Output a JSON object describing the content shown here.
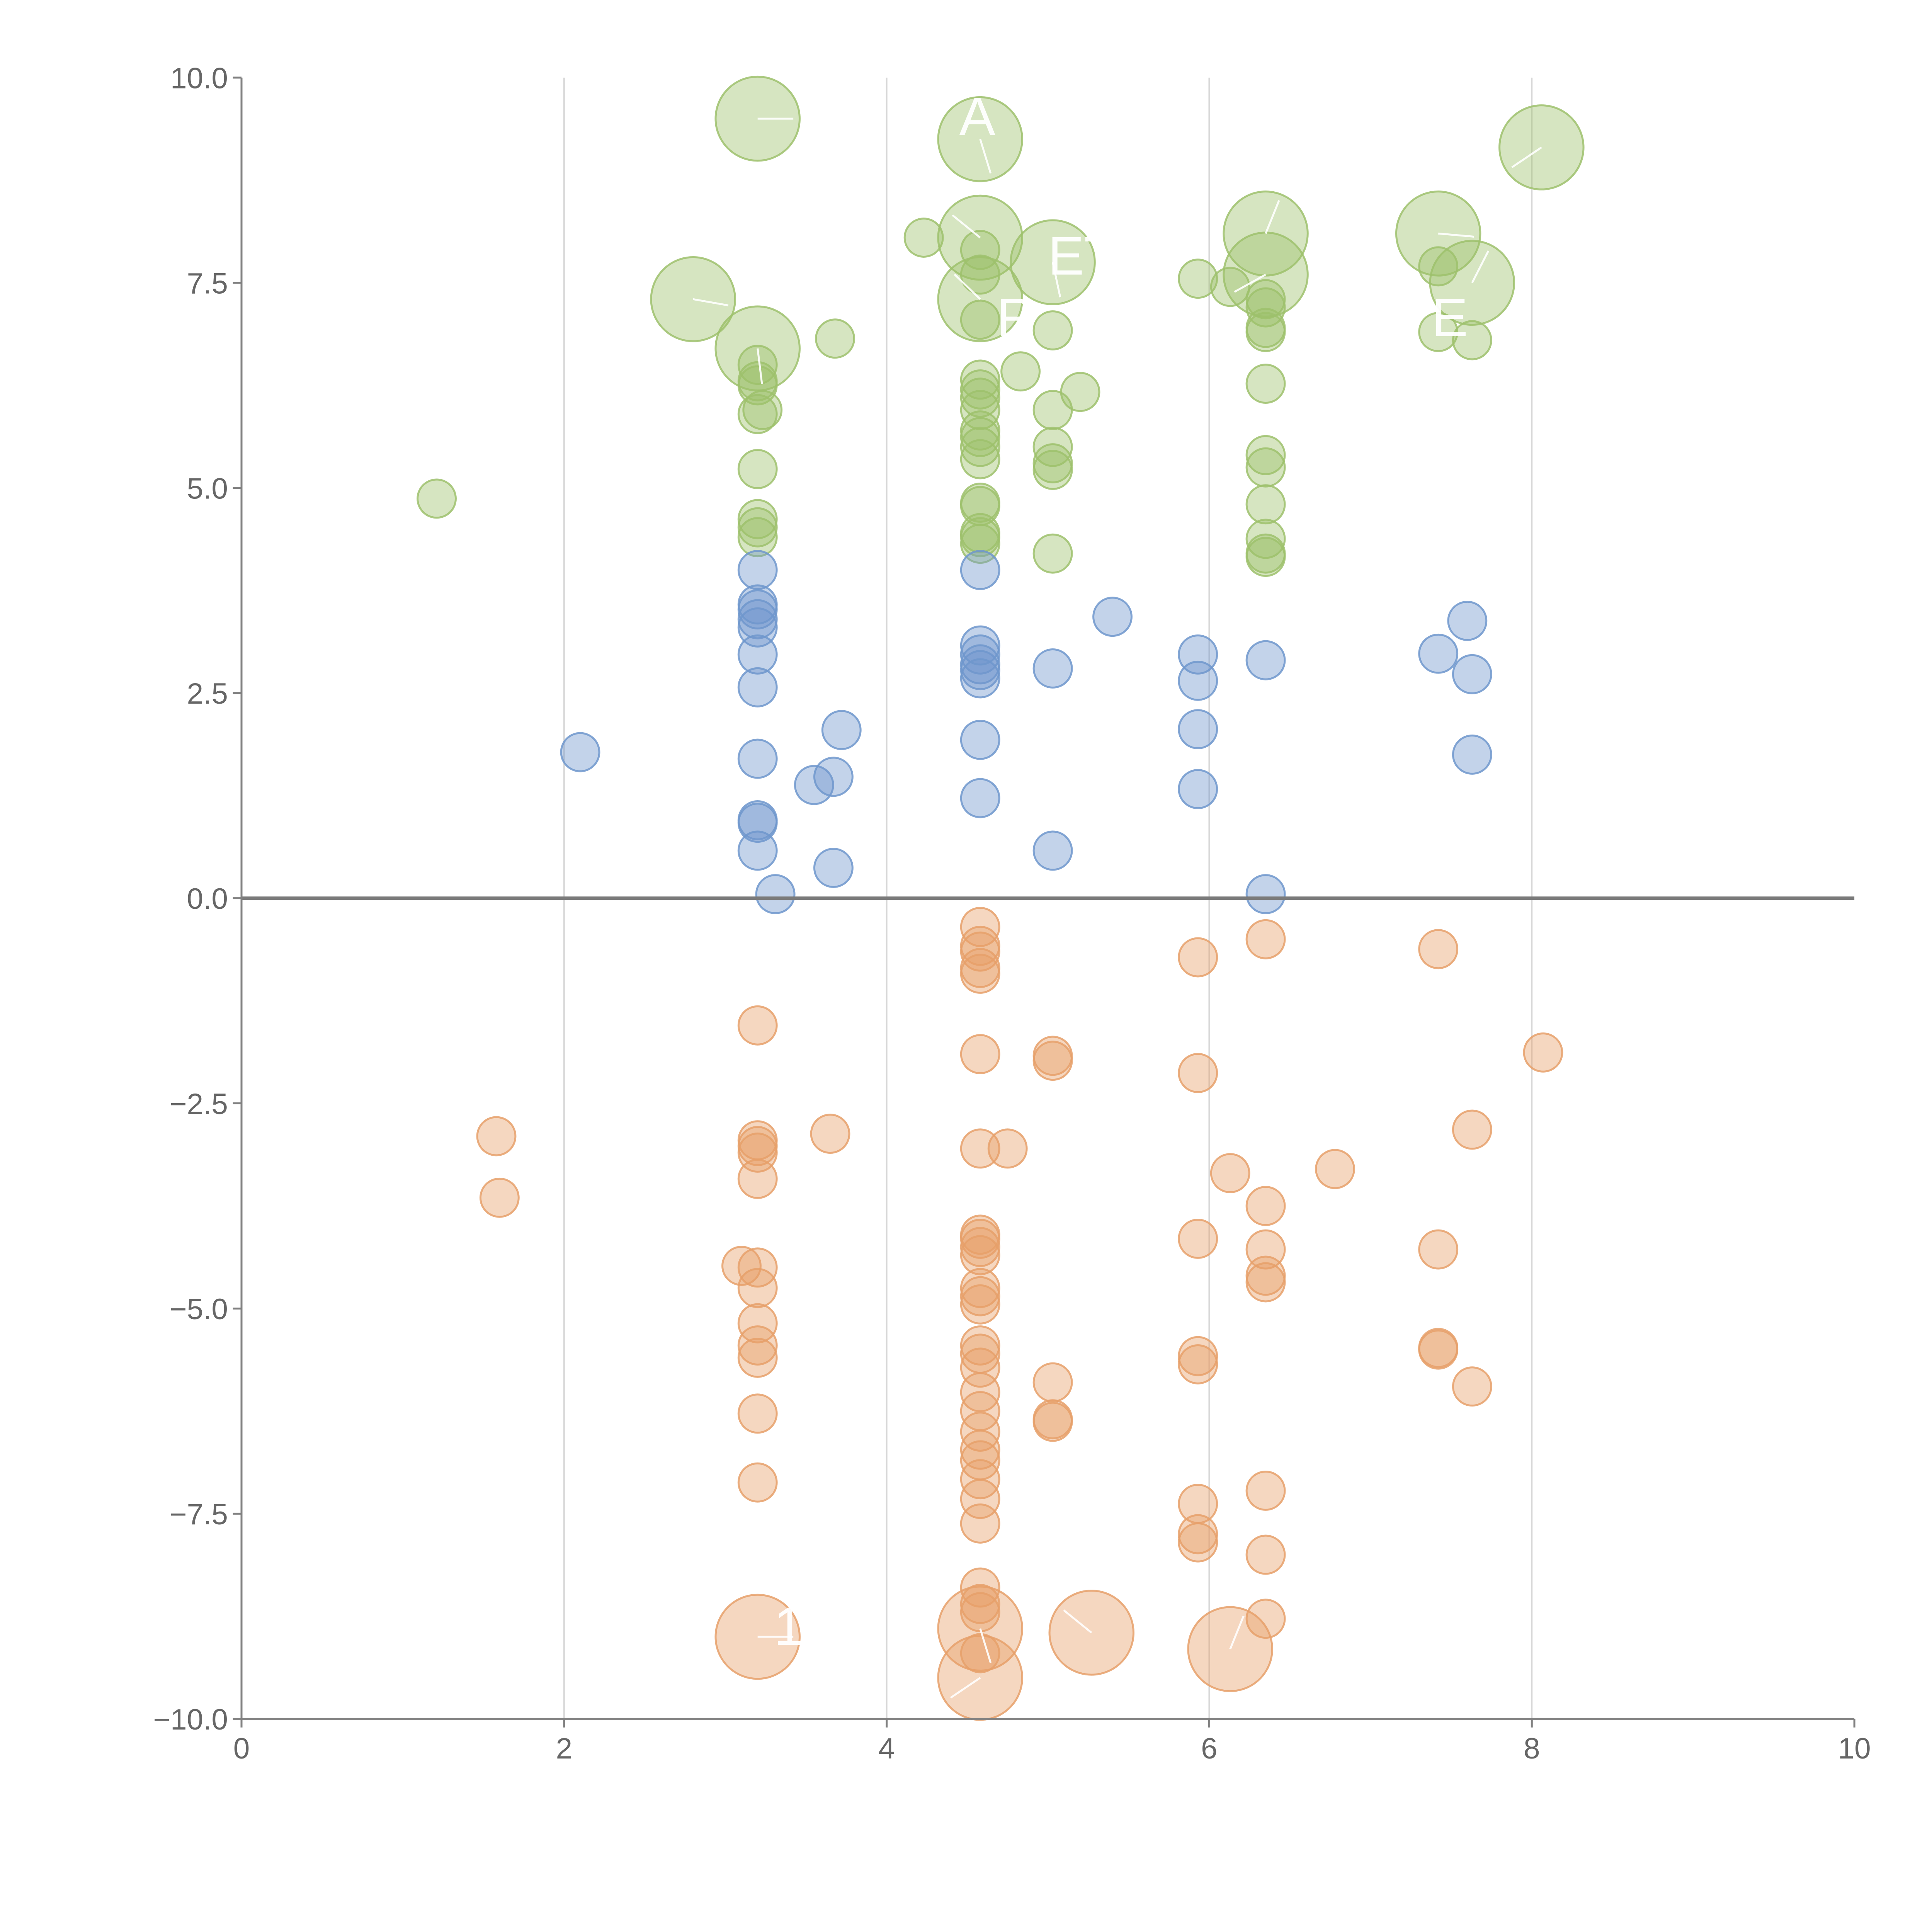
{
  "chart_data": {
    "type": "scatter",
    "title": "",
    "xlabel": "",
    "ylabel": "",
    "xlim": [
      0,
      10
    ],
    "ylim": [
      -10,
      10
    ],
    "x_ticks": [
      0,
      2,
      4,
      6,
      8,
      10
    ],
    "x_tick_labels": [
      "0",
      "2",
      "4",
      "6",
      "8",
      "10"
    ],
    "y_ticks": [
      10,
      7.5,
      5,
      2.5,
      0,
      -2.5,
      -5,
      -7.5,
      -10
    ],
    "y_tick_labels": [
      "10.0",
      "7.5",
      "5.0",
      "2.5",
      "0.0",
      "−2.5",
      "−5.0",
      "−7.5",
      "−10.0"
    ],
    "vertical_gridlines_at": [
      2,
      4,
      6,
      8
    ],
    "zero_line": true,
    "colors": {
      "green": "#9dc16c",
      "blue": "#6f97cd",
      "orange": "#e6a06a",
      "axis": "#808080",
      "grid": "#d8d8d8",
      "zero_line": "#7a7a7a",
      "label_text": "#ffffff"
    },
    "series": [
      {
        "name": "green",
        "color": "#9dc16c",
        "points": [
          [
            3.2,
            9.5,
            2.2
          ],
          [
            4.58,
            9.25,
            2.2
          ],
          [
            8.06,
            9.15,
            2.2
          ],
          [
            4.58,
            8.05,
            2.2
          ],
          [
            6.35,
            8.1,
            2.2
          ],
          [
            7.42,
            8.1,
            2.2
          ],
          [
            5.03,
            7.75,
            2.2
          ],
          [
            6.35,
            7.6,
            2.2
          ],
          [
            4.58,
            7.3,
            2.2
          ],
          [
            7.63,
            7.5,
            2.2
          ],
          [
            2.8,
            7.3,
            2.2
          ],
          [
            3.2,
            6.7,
            2.2
          ],
          [
            4.23,
            8.05,
            1
          ],
          [
            4.58,
            7.9,
            1
          ],
          [
            4.58,
            7.6,
            1
          ],
          [
            4.58,
            7.05,
            1
          ],
          [
            5.93,
            7.55,
            1
          ],
          [
            6.13,
            7.45,
            1
          ],
          [
            6.35,
            7.3,
            1
          ],
          [
            6.35,
            7.2,
            1
          ],
          [
            6.35,
            6.95,
            1
          ],
          [
            6.35,
            6.9,
            1
          ],
          [
            7.42,
            7.7,
            1
          ],
          [
            7.42,
            6.9,
            1
          ],
          [
            7.63,
            6.8,
            1
          ],
          [
            5.03,
            6.92,
            1
          ],
          [
            3.68,
            6.82,
            1
          ],
          [
            4.83,
            6.42,
            1
          ],
          [
            5.2,
            6.17,
            1
          ],
          [
            3.2,
            6.5,
            1
          ],
          [
            3.2,
            6.3,
            1
          ],
          [
            3.2,
            6.25,
            1
          ],
          [
            3.23,
            5.95,
            1
          ],
          [
            3.2,
            5.9,
            1
          ],
          [
            4.58,
            6.32,
            1
          ],
          [
            4.58,
            6.2,
            1
          ],
          [
            4.58,
            6.1,
            1
          ],
          [
            4.58,
            5.95,
            1
          ],
          [
            4.58,
            5.7,
            1
          ],
          [
            4.58,
            5.62,
            1
          ],
          [
            4.58,
            5.5,
            1
          ],
          [
            4.58,
            5.35,
            1
          ],
          [
            5.03,
            5.95,
            1
          ],
          [
            5.03,
            5.5,
            1
          ],
          [
            5.03,
            5.3,
            1
          ],
          [
            5.03,
            5.22,
            1
          ],
          [
            6.35,
            6.27,
            1
          ],
          [
            6.35,
            5.4,
            1
          ],
          [
            6.35,
            5.25,
            1
          ],
          [
            6.35,
            4.8,
            1
          ],
          [
            6.35,
            4.38,
            1
          ],
          [
            6.35,
            4.2,
            1
          ],
          [
            6.35,
            4.16,
            1
          ],
          [
            3.2,
            5.23,
            1
          ],
          [
            3.2,
            4.62,
            1
          ],
          [
            3.2,
            4.52,
            1
          ],
          [
            3.2,
            4.4,
            1
          ],
          [
            4.58,
            4.82,
            1
          ],
          [
            4.58,
            4.78,
            1
          ],
          [
            4.58,
            4.45,
            1
          ],
          [
            4.58,
            4.4,
            1
          ],
          [
            4.58,
            4.32,
            1
          ],
          [
            5.03,
            4.2,
            1
          ],
          [
            1.21,
            4.87,
            1
          ]
        ]
      },
      {
        "name": "blue",
        "color": "#6f97cd",
        "points": [
          [
            3.2,
            4.0,
            1
          ],
          [
            3.2,
            3.58,
            1
          ],
          [
            3.2,
            3.52,
            1
          ],
          [
            3.2,
            3.4,
            1
          ],
          [
            3.2,
            3.3,
            1
          ],
          [
            3.2,
            2.97,
            1
          ],
          [
            3.2,
            2.57,
            1
          ],
          [
            3.2,
            1.7,
            1
          ],
          [
            3.2,
            0.95,
            1
          ],
          [
            3.2,
            0.92,
            1
          ],
          [
            3.2,
            0.58,
            1
          ],
          [
            3.31,
            0.05,
            1
          ],
          [
            3.72,
            2.05,
            1
          ],
          [
            3.55,
            1.38,
            1
          ],
          [
            3.67,
            1.48,
            1
          ],
          [
            3.67,
            0.37,
            1
          ],
          [
            2.1,
            1.78,
            1
          ],
          [
            4.58,
            4.0,
            1
          ],
          [
            4.58,
            3.08,
            1
          ],
          [
            4.58,
            2.97,
            1
          ],
          [
            4.58,
            2.85,
            1
          ],
          [
            4.58,
            2.78,
            1
          ],
          [
            4.58,
            2.68,
            1
          ],
          [
            4.58,
            1.93,
            1
          ],
          [
            4.58,
            1.22,
            1
          ],
          [
            5.03,
            2.8,
            1
          ],
          [
            5.03,
            0.58,
            1
          ],
          [
            5.4,
            3.43,
            1
          ],
          [
            5.93,
            2.97,
            1
          ],
          [
            5.93,
            2.65,
            1
          ],
          [
            5.93,
            2.06,
            1
          ],
          [
            5.93,
            1.33,
            1
          ],
          [
            6.35,
            2.9,
            1
          ],
          [
            6.35,
            0.05,
            1
          ],
          [
            7.42,
            2.98,
            1
          ],
          [
            7.6,
            3.38,
            1
          ],
          [
            7.63,
            2.73,
            1
          ],
          [
            7.63,
            1.75,
            1
          ]
        ]
      },
      {
        "name": "orange",
        "color": "#e6a06a",
        "points": [
          [
            3.2,
            -9.0,
            2.2
          ],
          [
            4.58,
            -8.9,
            2.2
          ],
          [
            4.58,
            -9.5,
            2.2
          ],
          [
            5.27,
            -8.95,
            2.2
          ],
          [
            6.13,
            -9.15,
            2.2
          ],
          [
            4.58,
            -0.35,
            1
          ],
          [
            4.58,
            -0.58,
            1
          ],
          [
            4.58,
            -0.65,
            1
          ],
          [
            4.58,
            -0.85,
            1
          ],
          [
            4.58,
            -0.92,
            1
          ],
          [
            4.58,
            -1.9,
            1
          ],
          [
            4.58,
            -3.05,
            1
          ],
          [
            4.75,
            -3.05,
            1
          ],
          [
            4.58,
            -4.1,
            1
          ],
          [
            4.58,
            -4.15,
            1
          ],
          [
            4.58,
            -4.25,
            1
          ],
          [
            4.58,
            -4.35,
            1
          ],
          [
            4.58,
            -4.75,
            1
          ],
          [
            4.58,
            -4.85,
            1
          ],
          [
            4.58,
            -4.95,
            1
          ],
          [
            4.58,
            -5.45,
            1
          ],
          [
            4.58,
            -5.55,
            1
          ],
          [
            4.58,
            -5.72,
            1
          ],
          [
            4.58,
            -6.02,
            1
          ],
          [
            4.58,
            -6.25,
            1
          ],
          [
            4.58,
            -6.5,
            1
          ],
          [
            4.58,
            -6.72,
            1
          ],
          [
            4.58,
            -6.85,
            1
          ],
          [
            4.58,
            -7.08,
            1
          ],
          [
            4.58,
            -7.32,
            1
          ],
          [
            4.58,
            -7.62,
            1
          ],
          [
            4.58,
            -8.4,
            1
          ],
          [
            4.58,
            -8.6,
            1
          ],
          [
            4.58,
            -8.7,
            1
          ],
          [
            4.58,
            -9.2,
            1
          ],
          [
            3.2,
            -1.55,
            1
          ],
          [
            3.2,
            -2.95,
            1
          ],
          [
            3.2,
            -3.02,
            1
          ],
          [
            3.2,
            -3.1,
            1
          ],
          [
            3.2,
            -3.42,
            1
          ],
          [
            3.1,
            -4.48,
            1
          ],
          [
            3.2,
            -4.5,
            1
          ],
          [
            3.2,
            -4.75,
            1
          ],
          [
            3.2,
            -5.18,
            1
          ],
          [
            3.2,
            -5.45,
            1
          ],
          [
            3.2,
            -5.6,
            1
          ],
          [
            3.2,
            -6.28,
            1
          ],
          [
            3.2,
            -7.12,
            1
          ],
          [
            3.65,
            -2.87,
            1
          ],
          [
            1.58,
            -2.9,
            1
          ],
          [
            1.6,
            -3.65,
            1
          ],
          [
            5.03,
            -1.92,
            1
          ],
          [
            5.03,
            -1.98,
            1
          ],
          [
            5.03,
            -5.9,
            1
          ],
          [
            5.03,
            -6.35,
            1
          ],
          [
            5.03,
            -6.38,
            1
          ],
          [
            5.93,
            -0.72,
            1
          ],
          [
            5.93,
            -2.13,
            1
          ],
          [
            5.93,
            -4.15,
            1
          ],
          [
            5.93,
            -5.58,
            1
          ],
          [
            5.93,
            -5.68,
            1
          ],
          [
            5.93,
            -7.38,
            1
          ],
          [
            5.93,
            -7.75,
            1
          ],
          [
            5.93,
            -7.85,
            1
          ],
          [
            6.13,
            -3.35,
            1
          ],
          [
            6.35,
            -0.5,
            1
          ],
          [
            6.35,
            -3.75,
            1
          ],
          [
            6.35,
            -4.28,
            1
          ],
          [
            6.35,
            -4.6,
            1
          ],
          [
            6.35,
            -4.68,
            1
          ],
          [
            6.35,
            -7.22,
            1
          ],
          [
            6.35,
            -8.0,
            1
          ],
          [
            6.35,
            -8.78,
            1
          ],
          [
            6.78,
            -3.3,
            1
          ],
          [
            7.42,
            -0.62,
            1
          ],
          [
            7.42,
            -4.28,
            1
          ],
          [
            7.42,
            -5.48,
            1
          ],
          [
            7.42,
            -5.5,
            1
          ],
          [
            7.63,
            -2.82,
            1
          ],
          [
            7.63,
            -5.95,
            1
          ],
          [
            8.07,
            -1.88,
            1
          ]
        ]
      }
    ],
    "annotations": [
      {
        "text": "A",
        "x": 4.45,
        "y": 9.3
      },
      {
        "text": "ET",
        "x": 5.0,
        "y": 7.6
      },
      {
        "text": "R",
        "x": 4.68,
        "y": 6.85
      },
      {
        "text": "E",
        "x": 7.38,
        "y": 6.85
      },
      {
        "text": "1",
        "x": 3.3,
        "y": -9.1
      }
    ]
  }
}
